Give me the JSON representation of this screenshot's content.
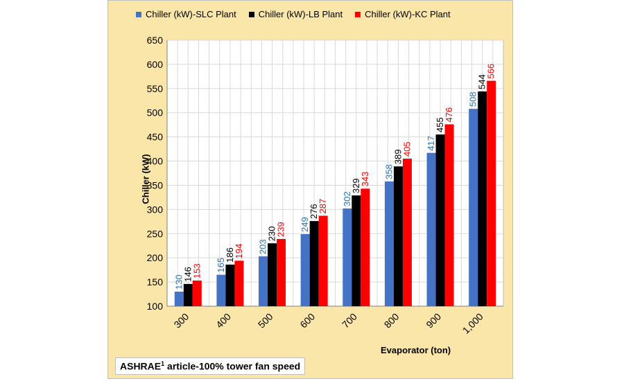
{
  "chart_data": {
    "type": "bar",
    "categories": [
      "300",
      "400",
      "500",
      "600",
      "700",
      "800",
      "900",
      "1,000"
    ],
    "series": [
      {
        "name": "Chiller (kW)-SLC Plant",
        "color": "#4472c4",
        "label_color": "#2e75b6",
        "values": [
          130,
          165,
          203,
          249,
          302,
          358,
          417,
          508
        ]
      },
      {
        "name": "Chiller (kW)-LB Plant",
        "color": "#000000",
        "label_color": "#000000",
        "values": [
          146,
          186,
          230,
          276,
          329,
          389,
          455,
          544
        ]
      },
      {
        "name": "Chiller (kW)-KC Plant",
        "color": "#ff0000",
        "label_color": "#ff0000",
        "values": [
          153,
          194,
          239,
          287,
          343,
          405,
          476,
          566
        ]
      }
    ],
    "ylim": [
      100,
      650
    ],
    "yticks": [
      100,
      150,
      200,
      250,
      300,
      350,
      400,
      450,
      500,
      550,
      600,
      650
    ],
    "xlabel": "Evaporator (ton)",
    "ylabel": "Chiller (kW)",
    "legend_position": "top",
    "grid": true,
    "plot_background": "#ffffff",
    "chart_background": "#fae6a8"
  },
  "footnote": {
    "prefix": "ASHRAE",
    "superscript": "1",
    "suffix": " article-100% tower fan speed"
  }
}
